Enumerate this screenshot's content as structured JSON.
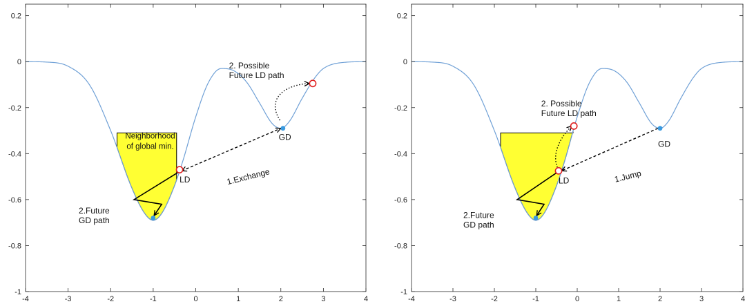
{
  "colors": {
    "curve": "#6fa0d6",
    "fill": "#ffff33",
    "gd_point": "#3a9ae0",
    "ld_point": "#e02020",
    "axis": "#262626"
  },
  "chart_data": [
    {
      "type": "line",
      "title": "",
      "xlabel": "",
      "ylabel": "",
      "xlim": [
        -4,
        4
      ],
      "ylim": [
        -1,
        0.25
      ],
      "xticks": [
        -4,
        -3,
        -2,
        -1,
        0,
        1,
        2,
        3,
        4
      ],
      "yticks": [
        -1,
        -0.8,
        -0.6,
        -0.4,
        -0.2,
        0,
        0.2
      ],
      "xtick_labels": [
        "-4",
        "-3",
        "-2",
        "-1",
        "0",
        "1",
        "2",
        "3",
        "4"
      ],
      "ytick_labels": [
        "-1",
        "-0.8",
        "-0.6",
        "-0.4",
        "-0.2",
        "0",
        "0.2"
      ],
      "series": [
        {
          "x": [
            -4,
            -3.5,
            -3,
            -2.5,
            -2,
            -1.5,
            -1.2,
            -1,
            -0.8,
            -0.5,
            -0.3,
            0,
            0.3,
            0.6,
            0.9,
            1.2,
            1.5,
            1.8,
            2,
            2.2,
            2.5,
            2.8,
            3,
            3.5,
            4
          ],
          "y": [
            0,
            -0.002,
            -0.02,
            -0.1,
            -0.3,
            -0.55,
            -0.66,
            -0.69,
            -0.66,
            -0.54,
            -0.43,
            -0.24,
            -0.09,
            -0.03,
            -0.04,
            -0.09,
            -0.18,
            -0.27,
            -0.29,
            -0.26,
            -0.16,
            -0.07,
            -0.03,
            -0.003,
            0
          ]
        }
      ],
      "shaded_region": {
        "x_from": -1.85,
        "x_to": -0.45,
        "y_level": -0.31,
        "label": [
          "Neighborhood",
          "of global min."
        ]
      },
      "points": [
        {
          "label": "GD",
          "x": 2.05,
          "y": -0.29,
          "style": "filled"
        },
        {
          "label": "LD",
          "x": -0.38,
          "y": -0.47,
          "style": "hollow"
        },
        {
          "label": "",
          "x": 2.75,
          "y": -0.095,
          "style": "hollow"
        },
        {
          "label": "",
          "x": -1.0,
          "y": -0.68,
          "style": "filled"
        }
      ],
      "annotations": [
        {
          "lines": [
            "2. Possible",
            "Future LD path"
          ],
          "x": 0.78,
          "y": -0.03
        },
        {
          "lines": [
            "1.Exchange"
          ],
          "x": 0.75,
          "y": -0.535
        },
        {
          "lines": [
            "GD"
          ],
          "x": 1.95,
          "y": -0.34
        },
        {
          "lines": [
            "LD"
          ],
          "x": -0.38,
          "y": -0.525
        },
        {
          "lines": [
            "2.Future",
            "GD path"
          ],
          "x": -2.75,
          "y": -0.66
        }
      ],
      "paths": [
        {
          "style": "dashed",
          "arrows": "both",
          "points": [
            [
              -0.33,
              -0.475
            ],
            [
              2.0,
              -0.29
            ]
          ]
        },
        {
          "style": "dotted",
          "arrows": "end",
          "points": [
            [
              1.98,
              -0.255
            ],
            [
              1.65,
              -0.16
            ],
            [
              2.1,
              -0.1
            ],
            [
              2.67,
              -0.095
            ]
          ]
        },
        {
          "style": "solid",
          "arrows": "end",
          "points": [
            [
              -0.4,
              -0.48
            ],
            [
              -1.45,
              -0.6
            ],
            [
              -0.8,
              -0.62
            ],
            [
              -0.98,
              -0.67
            ]
          ]
        }
      ]
    },
    {
      "type": "line",
      "title": "",
      "xlabel": "",
      "ylabel": "",
      "xlim": [
        -4,
        4
      ],
      "ylim": [
        -1,
        0.25
      ],
      "xticks": [
        -4,
        -3,
        -2,
        -1,
        0,
        1,
        2,
        3,
        4
      ],
      "yticks": [
        -1,
        -0.8,
        -0.6,
        -0.4,
        -0.2,
        0,
        0.2
      ],
      "xtick_labels": [
        "-4",
        "-3",
        "-2",
        "-1",
        "0",
        "1",
        "2",
        "3",
        "4"
      ],
      "ytick_labels": [
        "-1",
        "-0.8",
        "-0.6",
        "-0.4",
        "-0.2",
        "0",
        "0.2"
      ],
      "series": [
        {
          "x": [
            -4,
            -3.5,
            -3,
            -2.5,
            -2,
            -1.5,
            -1.2,
            -1,
            -0.8,
            -0.5,
            -0.3,
            0,
            0.3,
            0.6,
            0.9,
            1.2,
            1.5,
            1.8,
            2,
            2.2,
            2.5,
            2.8,
            3,
            3.5,
            4
          ],
          "y": [
            0,
            -0.002,
            -0.02,
            -0.1,
            -0.3,
            -0.55,
            -0.66,
            -0.69,
            -0.66,
            -0.54,
            -0.43,
            -0.24,
            -0.09,
            -0.03,
            -0.04,
            -0.09,
            -0.18,
            -0.27,
            -0.29,
            -0.26,
            -0.16,
            -0.07,
            -0.03,
            -0.003,
            0
          ]
        }
      ],
      "shaded_region": {
        "x_from": -1.85,
        "x_to": -0.1,
        "y_level": -0.31,
        "label": []
      },
      "points": [
        {
          "label": "GD",
          "x": 2.0,
          "y": -0.29,
          "style": "filled"
        },
        {
          "label": "LD",
          "x": -0.45,
          "y": -0.475,
          "style": "hollow"
        },
        {
          "label": "",
          "x": -0.08,
          "y": -0.28,
          "style": "hollow"
        },
        {
          "label": "",
          "x": -1.0,
          "y": -0.68,
          "style": "filled"
        }
      ],
      "annotations": [
        {
          "lines": [
            "2. Possible",
            "Future LD path"
          ],
          "x": -0.87,
          "y": -0.195
        },
        {
          "lines": [
            "1.Jump"
          ],
          "x": 0.92,
          "y": -0.525
        },
        {
          "lines": [
            "GD"
          ],
          "x": 1.95,
          "y": -0.37
        },
        {
          "lines": [
            "LD"
          ],
          "x": -0.45,
          "y": -0.53
        },
        {
          "lines": [
            "2.Future",
            "GD path"
          ],
          "x": -2.75,
          "y": -0.68
        }
      ],
      "paths": [
        {
          "style": "dashed",
          "arrows": "end",
          "points": [
            [
              1.95,
              -0.29
            ],
            [
              -0.38,
              -0.475
            ]
          ]
        },
        {
          "style": "dotted",
          "arrows": "end",
          "points": [
            [
              -0.48,
              -0.46
            ],
            [
              -0.65,
              -0.38
            ],
            [
              -0.25,
              -0.3
            ],
            [
              -0.13,
              -0.28
            ]
          ]
        },
        {
          "style": "solid",
          "arrows": "end",
          "points": [
            [
              -0.47,
              -0.48
            ],
            [
              -1.45,
              -0.6
            ],
            [
              -0.8,
              -0.62
            ],
            [
              -0.98,
              -0.67
            ]
          ]
        }
      ]
    }
  ]
}
